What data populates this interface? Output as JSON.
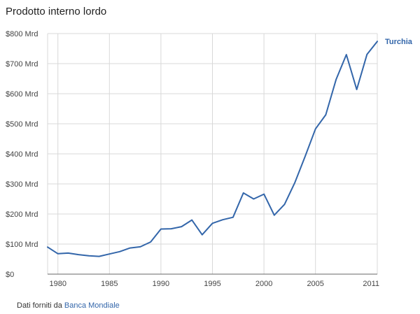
{
  "title": "Prodotto interno lordo",
  "source": {
    "prefix": "Dati forniti da",
    "link_label": "Banca Mondiale"
  },
  "colors": {
    "series": "#3366aa",
    "grid": "#d8d8d8",
    "axis": "#666666"
  },
  "chart_data": {
    "type": "line",
    "title": "Prodotto interno lordo",
    "xlabel": "",
    "ylabel": "",
    "grid": true,
    "legend_placement": "right-end-of-line",
    "xlim": [
      1979,
      2011
    ],
    "ylim": [
      0,
      800
    ],
    "x_ticks": [
      1980,
      1985,
      1990,
      1995,
      2000,
      2005,
      2011
    ],
    "y_ticks": [
      {
        "value": 0,
        "label": "$0"
      },
      {
        "value": 100,
        "label": "$100 Mrd"
      },
      {
        "value": 200,
        "label": "$200 Mrd"
      },
      {
        "value": 300,
        "label": "$300 Mrd"
      },
      {
        "value": 400,
        "label": "$400 Mrd"
      },
      {
        "value": 500,
        "label": "$500 Mrd"
      },
      {
        "value": 600,
        "label": "$600 Mrd"
      },
      {
        "value": 700,
        "label": "$700 Mrd"
      },
      {
        "value": 800,
        "label": "$800 Mrd"
      }
    ],
    "series": [
      {
        "name": "Turchia",
        "x": [
          1979,
          1980,
          1981,
          1982,
          1983,
          1984,
          1985,
          1986,
          1987,
          1988,
          1989,
          1990,
          1991,
          1992,
          1993,
          1994,
          1995,
          1996,
          1997,
          1998,
          1999,
          2000,
          2001,
          2002,
          2003,
          2004,
          2005,
          2006,
          2007,
          2008,
          2009,
          2010,
          2011
        ],
        "values": [
          90,
          68,
          70,
          65,
          61,
          59,
          67,
          75,
          87,
          91,
          107,
          150,
          151,
          158,
          180,
          131,
          169,
          181,
          189,
          270,
          250,
          266,
          196,
          232,
          305,
          392,
          483,
          530,
          647,
          730,
          614,
          731,
          774
        ]
      }
    ]
  }
}
